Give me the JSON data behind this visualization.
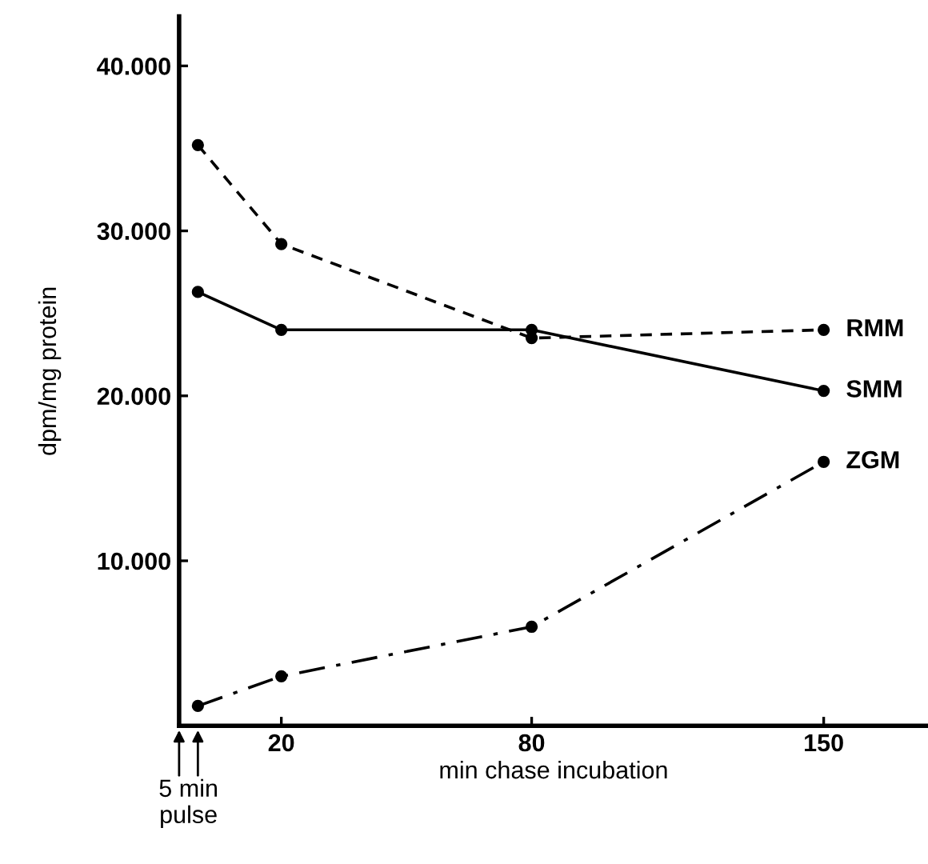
{
  "chart_data": {
    "type": "line",
    "xlabel": "min chase incubation",
    "ylabel": "dpm/mg protein",
    "x": [
      0,
      20,
      80,
      150
    ],
    "series": [
      {
        "name": "RMM",
        "color": "#000000",
        "line_style": "dashed",
        "values": [
          35200,
          29200,
          23500,
          24000
        ]
      },
      {
        "name": "SMM",
        "color": "#000000",
        "line_style": "solid",
        "values": [
          26300,
          24000,
          24000,
          20300
        ]
      },
      {
        "name": "ZGM",
        "color": "#000000",
        "line_style": "dashdot",
        "values": [
          1200,
          3000,
          6000,
          16000
        ]
      }
    ],
    "marker": "circle",
    "xlim": [
      -4.5,
      175
    ],
    "xticks": [
      20,
      80,
      150
    ],
    "ylim": [
      0,
      43000
    ],
    "yticks": [
      {
        "value": 10000,
        "label": "10.000"
      },
      {
        "value": 20000,
        "label": "20.000"
      },
      {
        "value": 30000,
        "label": "30.000"
      },
      {
        "value": 40000,
        "label": "40.000"
      }
    ],
    "grid": false,
    "legend": false,
    "annotations": [
      "5 min\npulse"
    ]
  }
}
